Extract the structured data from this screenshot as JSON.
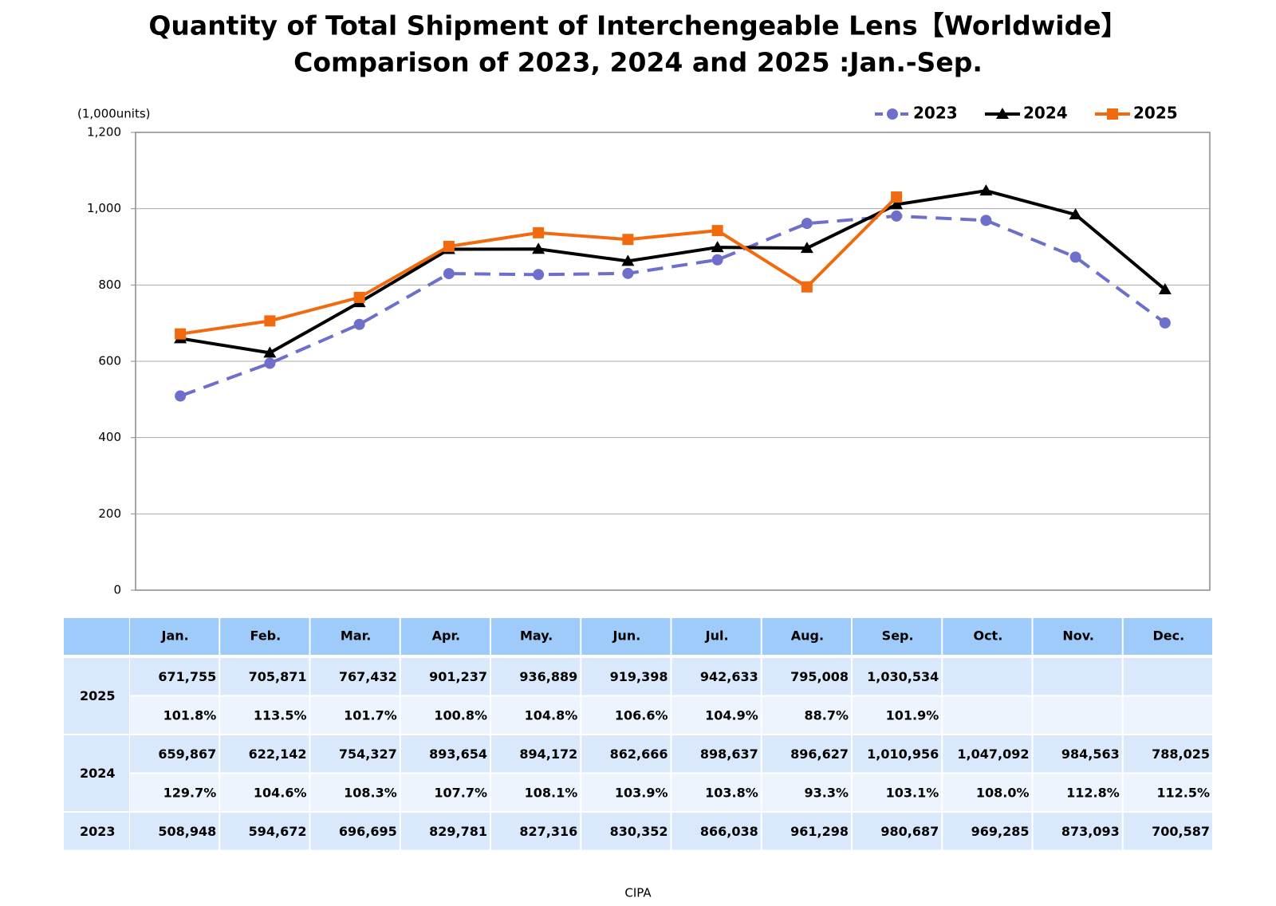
{
  "chart_data": {
    "type": "line",
    "title": [
      "Quantity of Total Shipment of Interchengeable Lens【Worldwide】",
      "Comparison of 2023, 2024 and 2025 :Jan.-Sep."
    ],
    "y_axis_label": "(1,000units)",
    "categories": [
      "Jan.",
      "Feb.",
      "Mar.",
      "Apr.",
      "May.",
      "Jun.",
      "Jul.",
      "Aug.",
      "Sep.",
      "Oct.",
      "Nov.",
      "Dec."
    ],
    "series": [
      {
        "name": "2023",
        "color": "#6e6ecb",
        "dashed": true,
        "marker": "circle",
        "values": [
          508.948,
          594.672,
          696.695,
          829.781,
          827.316,
          830.352,
          866.038,
          961.298,
          980.687,
          969.285,
          873.093,
          700.587
        ]
      },
      {
        "name": "2024",
        "color": "#000000",
        "dashed": false,
        "marker": "triangle",
        "values": [
          659.867,
          622.142,
          754.327,
          893.654,
          894.172,
          862.666,
          898.637,
          896.627,
          1010.956,
          1047.092,
          984.563,
          788.025
        ]
      },
      {
        "name": "2025",
        "color": "#f26a10",
        "dashed": false,
        "marker": "square",
        "values": [
          671.755,
          705.871,
          767.432,
          901.237,
          936.889,
          919.398,
          942.633,
          795.008,
          1030.534,
          null,
          null,
          null
        ]
      }
    ],
    "ylim": [
      0,
      1200
    ],
    "yticks": [
      0,
      200,
      400,
      600,
      800,
      {
        "value": 1000,
        "label": "1,000"
      },
      {
        "value": 1200,
        "label": "1,200"
      }
    ],
    "grid": true,
    "legend": "top-right"
  },
  "table": {
    "rows": [
      {
        "label": "2025",
        "values": [
          "671,755",
          "705,871",
          "767,432",
          "901,237",
          "936,889",
          "919,398",
          "942,633",
          "795,008",
          "1,030,534"
        ],
        "ratios": [
          "101.8%",
          "113.5%",
          "101.7%",
          "100.8%",
          "104.8%",
          "106.6%",
          "104.9%",
          "88.7%",
          "101.9%"
        ]
      },
      {
        "label": "2024",
        "values": [
          "659,867",
          "622,142",
          "754,327",
          "893,654",
          "894,172",
          "862,666",
          "898,637",
          "896,627",
          "1,010,956",
          "1,047,092",
          "984,563",
          "788,025"
        ],
        "ratios": [
          "129.7%",
          "104.6%",
          "108.3%",
          "107.7%",
          "108.1%",
          "103.9%",
          "103.8%",
          "93.3%",
          "103.1%",
          "108.0%",
          "112.8%",
          "112.5%"
        ]
      },
      {
        "label": "2023",
        "values": [
          "508,948",
          "594,672",
          "696,695",
          "829,781",
          "827,316",
          "830,352",
          "866,038",
          "961,298",
          "980,687",
          "969,285",
          "873,093",
          "700,587"
        ]
      }
    ]
  },
  "source": "CIPA"
}
